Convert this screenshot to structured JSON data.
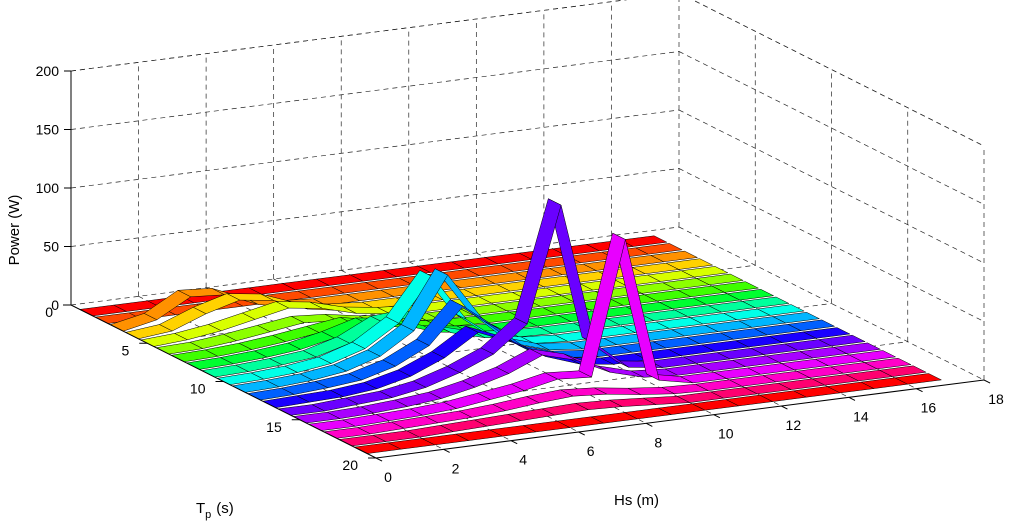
{
  "chart_data": {
    "type": "ribbon3d",
    "title": "",
    "xlabel": "Hs (m)",
    "ylabel_main": "T",
    "ylabel_sub": "p",
    "ylabel_unit": "(s)",
    "zlabel": "Power (W)",
    "xlim": [
      0,
      18
    ],
    "ylim": [
      0,
      20
    ],
    "zlim": [
      0,
      200
    ],
    "xticks": [
      "0",
      "2",
      "4",
      "6",
      "8",
      "10",
      "12",
      "14",
      "16",
      "18"
    ],
    "yticks": [
      "0",
      "5",
      "10",
      "15",
      "20"
    ],
    "zticks": [
      "0",
      "50",
      "100",
      "150",
      "200"
    ],
    "grid": true,
    "x": [
      0,
      1,
      2,
      3,
      4,
      5,
      6,
      7,
      8,
      9,
      10,
      11,
      12,
      13,
      14,
      15,
      16,
      17
    ],
    "ribbon_colors": [
      "#ff0000",
      "#ff4a00",
      "#ff9100",
      "#ffd200",
      "#d8ff00",
      "#8cff00",
      "#3eff00",
      "#00ff30",
      "#00ff9c",
      "#00ffe8",
      "#00b6ff",
      "#0060ff",
      "#1a00ff",
      "#6a00ff",
      "#a800ff",
      "#e800ff",
      "#ff00c8",
      "#ff0070",
      "#ff0000"
    ],
    "series": [
      {
        "tp": 1,
        "values": [
          0,
          0,
          0,
          0,
          0,
          0,
          0,
          0,
          0,
          0,
          0,
          0,
          0,
          0,
          0,
          0,
          0,
          0
        ]
      },
      {
        "tp": 2,
        "values": [
          0,
          0,
          0,
          0,
          0,
          0,
          0,
          0,
          0,
          0,
          0,
          0,
          0,
          0,
          0,
          0,
          0,
          0
        ]
      },
      {
        "tp": 3,
        "values": [
          0,
          6,
          22,
          20,
          8,
          2,
          0,
          0,
          0,
          0,
          0,
          0,
          0,
          0,
          0,
          0,
          0,
          0
        ]
      },
      {
        "tp": 4,
        "values": [
          0,
          3,
          14,
          22,
          18,
          7,
          2,
          0,
          0,
          0,
          0,
          0,
          0,
          0,
          0,
          0,
          0,
          0
        ]
      },
      {
        "tp": 5,
        "values": [
          0,
          2,
          6,
          12,
          18,
          14,
          6,
          2,
          0,
          0,
          0,
          0,
          0,
          0,
          0,
          0,
          0,
          0
        ]
      },
      {
        "tp": 6,
        "values": [
          0,
          1,
          4,
          8,
          12,
          10,
          5,
          2,
          0,
          0,
          0,
          0,
          0,
          0,
          0,
          0,
          0,
          0
        ]
      },
      {
        "tp": 7,
        "values": [
          0,
          1,
          3,
          6,
          10,
          14,
          8,
          3,
          1,
          0,
          0,
          0,
          0,
          0,
          0,
          0,
          0,
          0
        ]
      },
      {
        "tp": 8,
        "values": [
          0,
          1,
          3,
          6,
          12,
          20,
          16,
          6,
          2,
          0,
          0,
          0,
          0,
          0,
          0,
          0,
          0,
          0
        ]
      },
      {
        "tp": 9,
        "values": [
          0,
          1,
          3,
          6,
          14,
          28,
          30,
          12,
          4,
          1,
          0,
          0,
          0,
          0,
          0,
          0,
          0,
          0
        ]
      },
      {
        "tp": 10,
        "values": [
          0,
          1,
          3,
          7,
          16,
          34,
          70,
          30,
          8,
          2,
          0,
          0,
          0,
          0,
          0,
          0,
          0,
          0
        ]
      },
      {
        "tp": 11,
        "values": [
          0,
          1,
          3,
          7,
          16,
          34,
          78,
          38,
          12,
          3,
          0,
          0,
          0,
          0,
          0,
          0,
          0,
          0
        ]
      },
      {
        "tp": 12,
        "values": [
          0,
          1,
          3,
          6,
          14,
          28,
          58,
          36,
          12,
          3,
          0,
          0,
          0,
          0,
          0,
          0,
          0,
          0
        ]
      },
      {
        "tp": 13,
        "values": [
          0,
          1,
          2,
          5,
          12,
          24,
          42,
          30,
          14,
          4,
          0,
          0,
          0,
          0,
          0,
          0,
          0,
          0
        ]
      },
      {
        "tp": 14,
        "values": [
          0,
          0,
          2,
          4,
          9,
          18,
          30,
          52,
          150,
          28,
          4,
          0,
          0,
          0,
          0,
          0,
          0,
          0
        ]
      },
      {
        "tp": 15,
        "values": [
          0,
          0,
          1,
          3,
          6,
          12,
          20,
          32,
          24,
          10,
          2,
          0,
          0,
          0,
          0,
          0,
          0,
          0
        ]
      },
      {
        "tp": 16,
        "values": [
          0,
          0,
          1,
          2,
          4,
          8,
          12,
          18,
          16,
          130,
          6,
          0,
          0,
          0,
          0,
          0,
          0,
          0
        ]
      },
      {
        "tp": 17,
        "values": [
          0,
          0,
          1,
          2,
          3,
          5,
          8,
          10,
          8,
          4,
          1,
          0,
          0,
          0,
          0,
          0,
          0,
          0
        ]
      },
      {
        "tp": 18,
        "values": [
          0,
          0,
          0,
          1,
          2,
          3,
          4,
          5,
          4,
          2,
          0,
          0,
          0,
          0,
          0,
          0,
          0,
          0
        ]
      },
      {
        "tp": 19,
        "values": [
          0,
          0,
          0,
          0,
          0,
          0,
          0,
          0,
          0,
          0,
          0,
          0,
          0,
          0,
          0,
          0,
          0,
          0
        ]
      }
    ]
  }
}
